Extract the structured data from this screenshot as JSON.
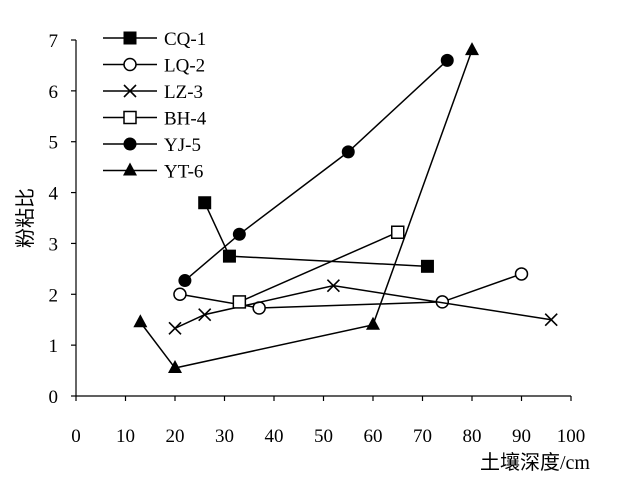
{
  "chart_data": {
    "type": "line",
    "title": "",
    "xlabel": "土壤深度/cm",
    "ylabel": "粉粘比",
    "xlim": [
      0,
      100
    ],
    "ylim": [
      0,
      7
    ],
    "xticks": [
      0,
      10,
      20,
      30,
      40,
      50,
      60,
      70,
      80,
      90,
      100
    ],
    "yticks": [
      0,
      1,
      2,
      3,
      4,
      5,
      6,
      7
    ],
    "grid": false,
    "legend_position": "top-left",
    "series": [
      {
        "name": "CQ-1",
        "marker": "filled-square",
        "points": [
          [
            26,
            3.8
          ],
          [
            31,
            2.75
          ],
          [
            71,
            2.55
          ]
        ]
      },
      {
        "name": "LQ-2",
        "marker": "open-circle",
        "points": [
          [
            21,
            2.0
          ],
          [
            37,
            1.73
          ],
          [
            74,
            1.85
          ],
          [
            90,
            2.4
          ]
        ]
      },
      {
        "name": "LZ-3",
        "marker": "cross",
        "points": [
          [
            20,
            1.33
          ],
          [
            26,
            1.6
          ],
          [
            52,
            2.17
          ],
          [
            96,
            1.5
          ]
        ]
      },
      {
        "name": "BH-4",
        "marker": "open-square",
        "points": [
          [
            33,
            1.85
          ],
          [
            65,
            3.22
          ]
        ]
      },
      {
        "name": "YJ-5",
        "marker": "filled-circle",
        "points": [
          [
            22,
            2.27
          ],
          [
            33,
            3.18
          ],
          [
            55,
            4.8
          ],
          [
            75,
            6.6
          ]
        ]
      },
      {
        "name": "YT-6",
        "marker": "filled-triangle",
        "points": [
          [
            13,
            1.45
          ],
          [
            20,
            0.55
          ],
          [
            60,
            1.4
          ],
          [
            80,
            6.8
          ]
        ]
      }
    ]
  }
}
